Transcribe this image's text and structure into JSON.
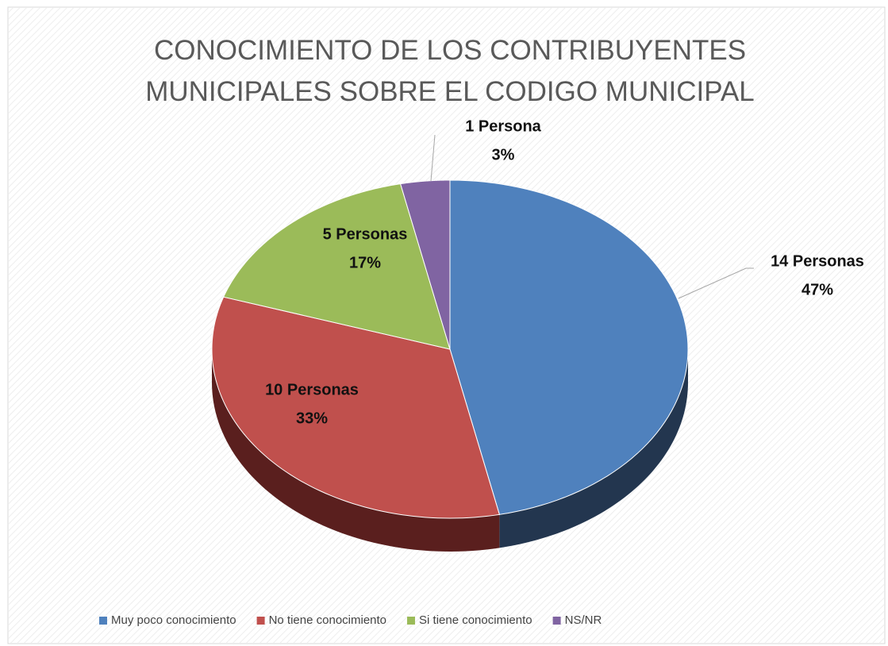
{
  "chart_data": {
    "type": "pie",
    "title": "CONOCIMIENTO DE LOS CONTRIBUYENTES MUNICIPALES SOBRE EL CODIGO MUNICIPAL",
    "categories": [
      "Muy poco conocimiento",
      "No tiene conocimiento",
      "Si tiene conocimiento",
      "NS/NR"
    ],
    "values": [
      14,
      10,
      5,
      1
    ],
    "value_labels": [
      "14 Personas",
      "10 Personas",
      "5 Personas",
      "1 Persona"
    ],
    "percentages": [
      47,
      33,
      17,
      3
    ],
    "percentage_labels": [
      "47%",
      "33%",
      "17%",
      "3%"
    ],
    "colors": [
      "#4f81bd",
      "#c0504d",
      "#9bbb59",
      "#8064a2"
    ],
    "side_colors": [
      "#23364f",
      "#5a1f1e",
      "#4a5a28",
      "#3c2e50"
    ],
    "legend": "bottom"
  }
}
